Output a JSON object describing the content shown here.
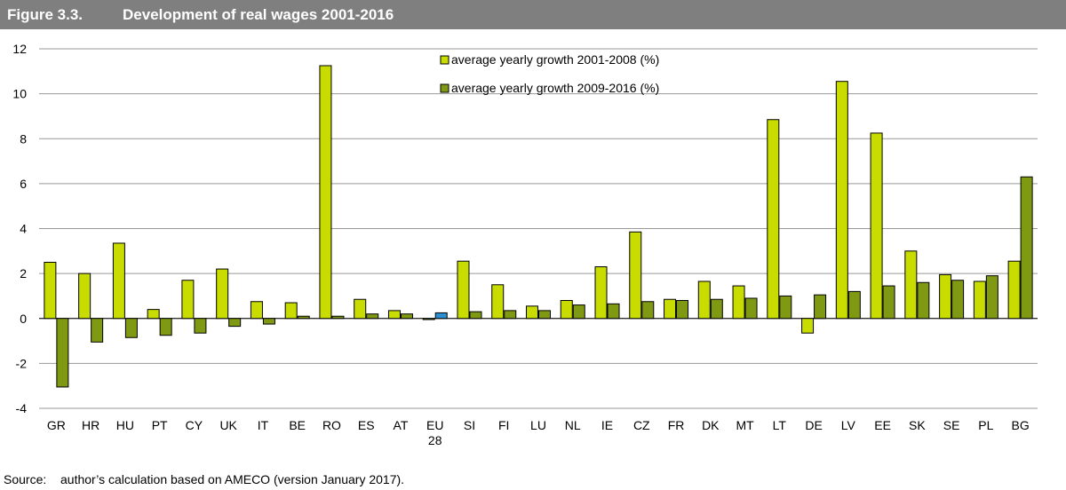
{
  "header": {
    "figure_number": "Figure 3.3.",
    "title": "Development of real wages 2001-2016"
  },
  "source": {
    "label": "Source:",
    "text": "author’s calculation based on AMECO (version January 2017)."
  },
  "colors": {
    "series1": "#c8dc00",
    "series2": "#7f9a12",
    "highlight": "#2e8fd0",
    "grid": "#999999",
    "header_bg": "#7f7f7f"
  },
  "chart_data": {
    "type": "bar",
    "title": "Development of real wages 2001-2016",
    "xlabel": "",
    "ylabel": "",
    "ylim": [
      -4,
      12
    ],
    "yticks": [
      -4,
      -2,
      0,
      2,
      4,
      6,
      8,
      10,
      12
    ],
    "grid": true,
    "legend_position": "top-center",
    "categories": [
      "GR",
      "HR",
      "HU",
      "PT",
      "CY",
      "UK",
      "IT",
      "BE",
      "RO",
      "ES",
      "AT",
      "EU 28",
      "SI",
      "FI",
      "LU",
      "NL",
      "IE",
      "CZ",
      "FR",
      "DK",
      "MT",
      "LT",
      "DE",
      "LV",
      "EE",
      "SK",
      "SE",
      "PL",
      "BG"
    ],
    "highlight_category": "EU 28",
    "series": [
      {
        "name": "average yearly growth 2001-2008 (%)",
        "values": [
          2.5,
          2.0,
          3.35,
          0.4,
          1.7,
          2.2,
          0.75,
          0.7,
          11.25,
          0.85,
          0.35,
          -0.05,
          2.55,
          1.5,
          0.55,
          0.8,
          2.3,
          3.85,
          0.85,
          1.65,
          1.45,
          8.85,
          -0.65,
          10.55,
          8.25,
          3.0,
          1.95,
          1.65,
          2.55
        ]
      },
      {
        "name": "average yearly growth 2009-2016 (%)",
        "values": [
          -3.05,
          -1.05,
          -0.85,
          -0.75,
          -0.65,
          -0.35,
          -0.25,
          0.1,
          0.1,
          0.2,
          0.2,
          0.25,
          0.3,
          0.35,
          0.35,
          0.6,
          0.65,
          0.75,
          0.8,
          0.85,
          0.9,
          1.0,
          1.05,
          1.2,
          1.45,
          1.6,
          1.7,
          1.9,
          6.3
        ]
      }
    ]
  }
}
